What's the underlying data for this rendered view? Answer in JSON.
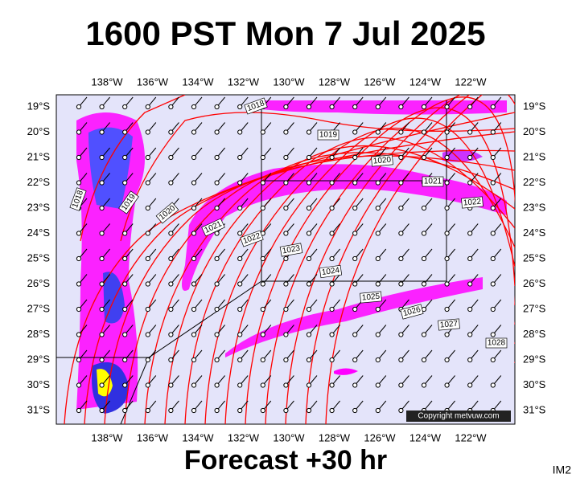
{
  "title": "1600 PST Mon 7 Jul 2025",
  "footer": "Forecast +30 hr",
  "corner": "IM2",
  "copyright": "Copyright metvuw.com",
  "lon_labels": [
    "138°W",
    "136°W",
    "134°W",
    "132°W",
    "130°W",
    "128°W",
    "126°W",
    "124°W",
    "122°W"
  ],
  "lat_labels": [
    "19°S",
    "20°S",
    "21°S",
    "22°S",
    "23°S",
    "24°S",
    "25°S",
    "26°S",
    "27°S",
    "28°S",
    "29°S",
    "30°S",
    "31°S"
  ],
  "isobar_labels": [
    "1018",
    "1019",
    "1020",
    "1021",
    "1022",
    "1023",
    "1024",
    "1025",
    "1026",
    "1027",
    "1028",
    "1018",
    "1019",
    "1020",
    "1021",
    "1022"
  ]
}
